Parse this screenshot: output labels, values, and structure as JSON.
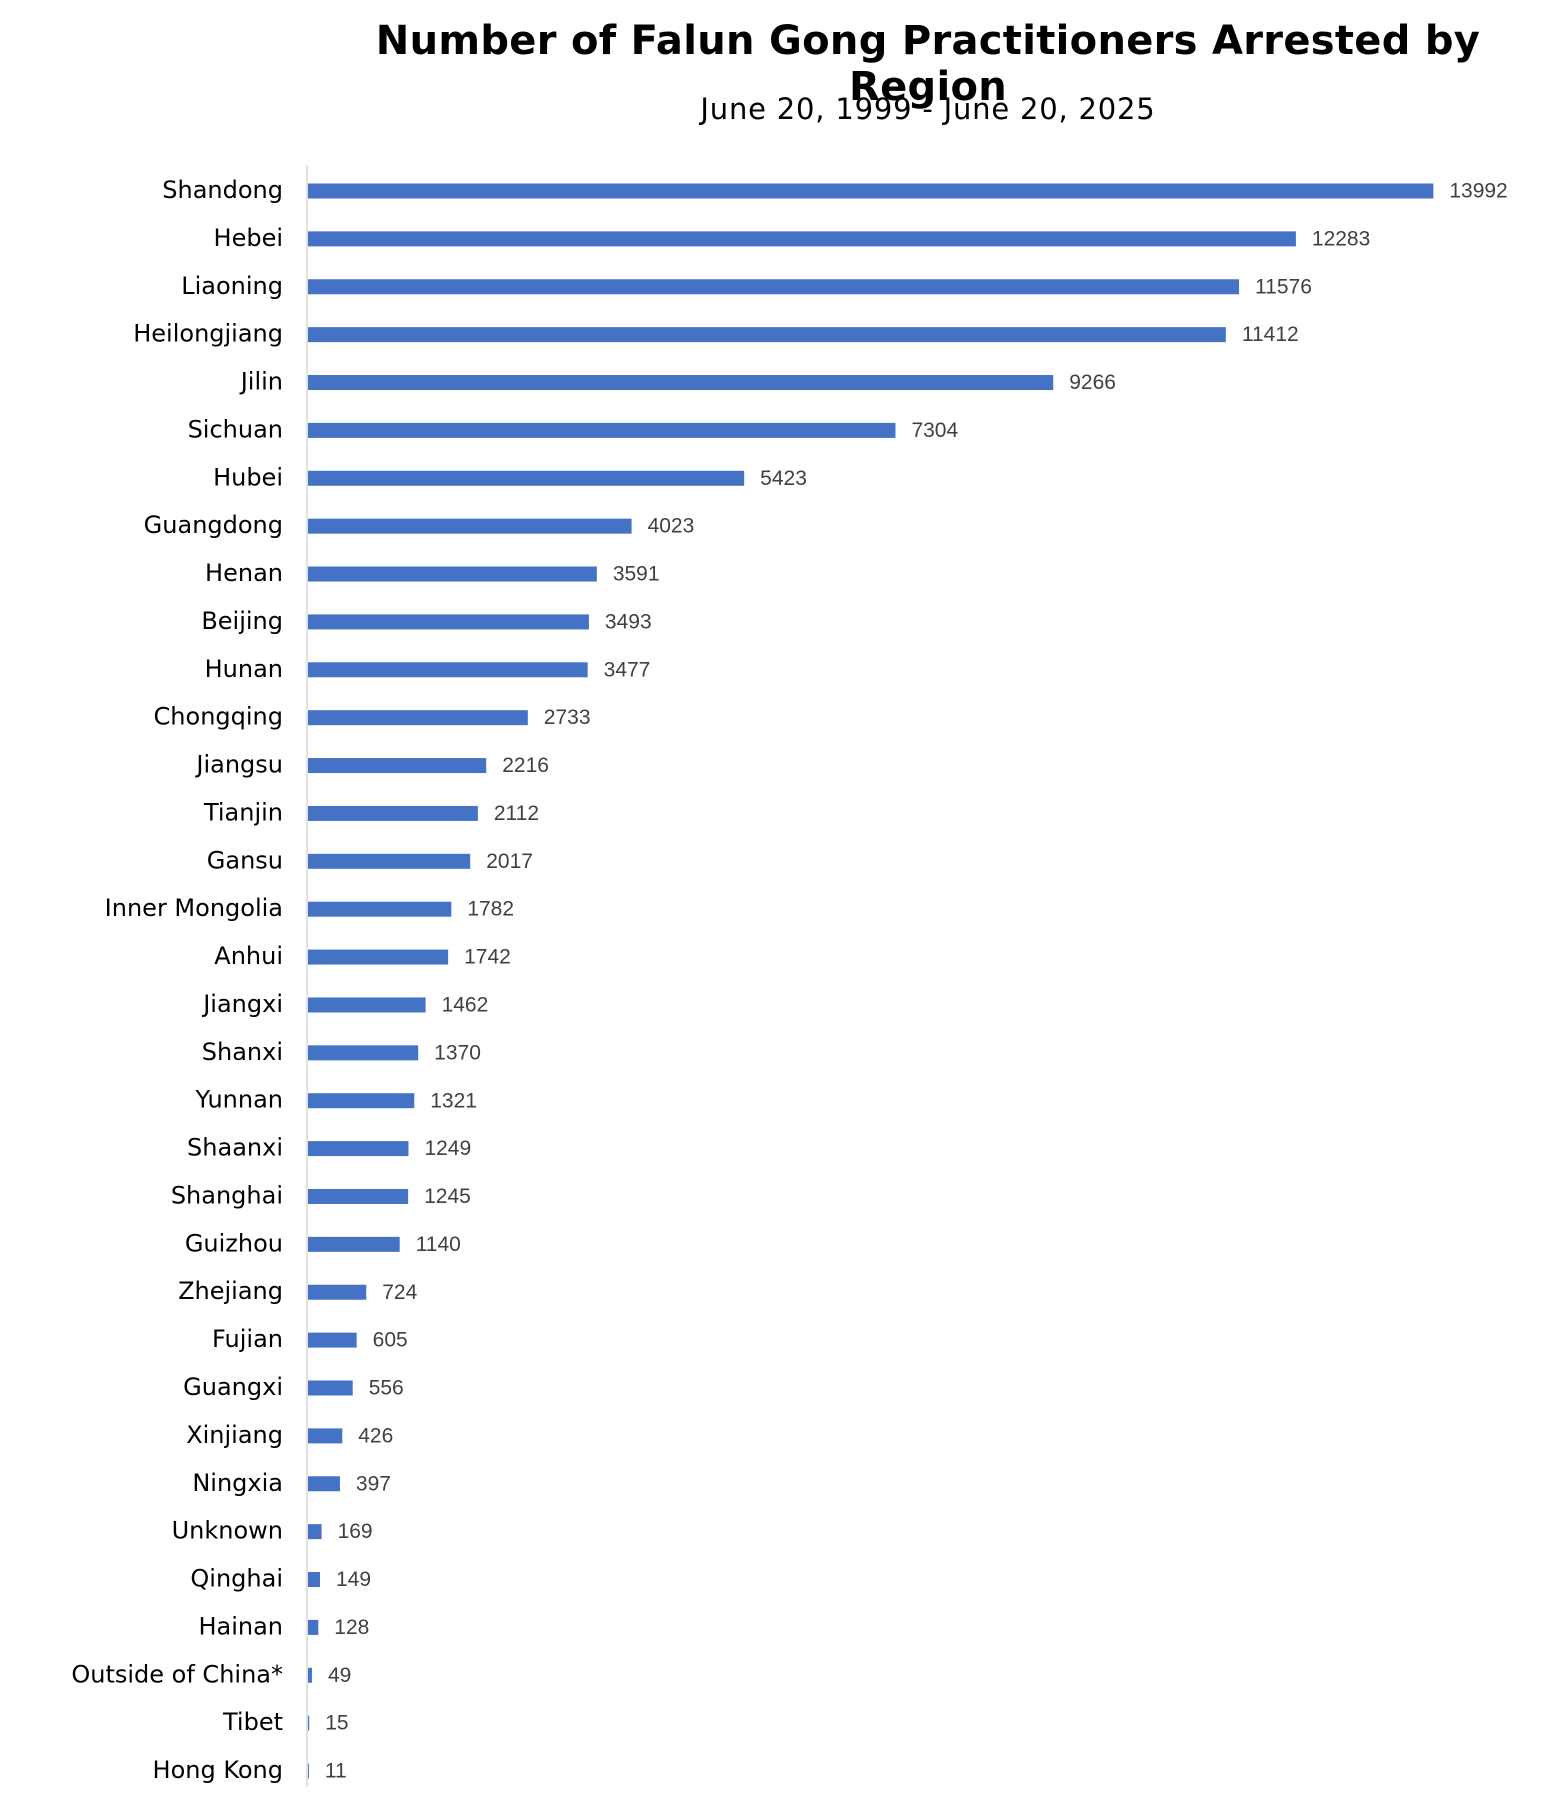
{
  "chart_data": {
    "type": "bar",
    "orientation": "horizontal",
    "title": "Number of Falun Gong Practitioners Arrested by Region",
    "subtitle": "June 20, 1999 - June 20, 2025",
    "categories": [
      "Shandong",
      "Hebei",
      "Liaoning",
      "Heilongjiang",
      "Jilin",
      "Sichuan",
      "Hubei",
      "Guangdong",
      "Henan",
      "Beijing",
      "Hunan",
      "Chongqing",
      "Jiangsu",
      "Tianjin",
      "Gansu",
      "Inner Mongolia",
      "Anhui",
      "Jiangxi",
      "Shanxi",
      "Yunnan",
      "Shaanxi",
      "Shanghai",
      "Guizhou",
      "Zhejiang",
      "Fujian",
      "Guangxi",
      "Xinjiang",
      "Ningxia",
      "Unknown",
      "Qinghai",
      "Hainan",
      "Outside of China*",
      "Tibet",
      "Hong Kong"
    ],
    "values": [
      13992,
      12283,
      11576,
      11412,
      9266,
      7304,
      5423,
      4023,
      3591,
      3493,
      3477,
      2733,
      2216,
      2112,
      2017,
      1782,
      1742,
      1462,
      1370,
      1321,
      1249,
      1245,
      1140,
      724,
      605,
      556,
      426,
      397,
      169,
      149,
      128,
      49,
      15,
      11
    ],
    "xlabel": "",
    "ylabel": "",
    "xlim": [
      0,
      14000
    ],
    "grid": false,
    "legend": "none",
    "data_labels": true,
    "colors": {
      "bar": "#4472C4",
      "axis": "#D9D9D9",
      "label": "#000000",
      "value_label": "#404040"
    }
  }
}
